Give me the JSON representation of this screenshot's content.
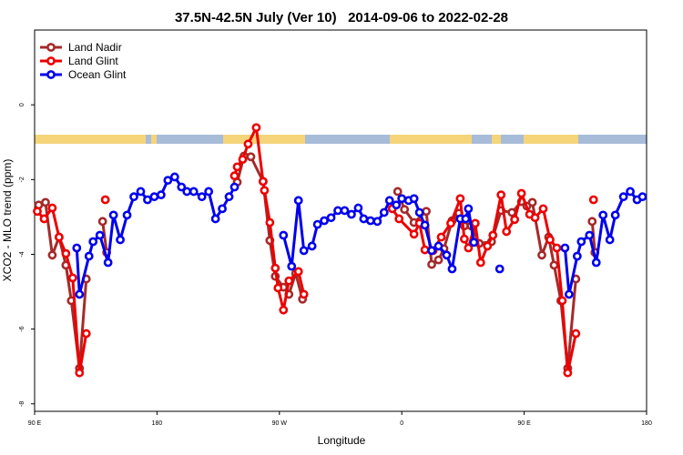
{
  "chart_data": {
    "type": "line",
    "title": "37.5N-42.5N July (Ver 10)   2014-09-06 to 2022-02-28",
    "x_label": "Longitude",
    "y_label": "XCO2 - MLO trend (ppm)",
    "xlim": [
      90,
      540
    ],
    "xticks": [
      {
        "value": 90,
        "label": "90 E"
      },
      {
        "value": 180,
        "label": "180"
      },
      {
        "value": 270,
        "label": "90 W"
      },
      {
        "value": 360,
        "label": "0"
      },
      {
        "value": 450,
        "label": "90 E"
      },
      {
        "value": 540,
        "label": "180"
      }
    ],
    "ylim": [
      -8.2,
      2
    ],
    "yticks": [
      0,
      -2,
      -4,
      -6,
      -8
    ],
    "legend": "top-left",
    "series": [
      {
        "name": "Land Nadir",
        "color": "#a52a2a",
        "x": [
          93,
          98,
          103,
          108,
          113,
          117,
          123,
          128,
          null,
          140,
          143,
          null,
          239,
          244,
          249,
          258,
          263,
          267,
          273,
          277,
          282,
          287,
          null,
          357,
          362,
          369,
          378,
          382,
          387,
          391,
          397,
          402,
          406,
          411,
          417,
          426,
          433,
          441,
          448,
          452,
          456,
          463,
          468,
          472,
          477,
          482,
          488,
          null,
          500,
          502
        ],
        "values": [
          -2.68,
          -2.61,
          -4.02,
          -3.54,
          -4.29,
          -5.24,
          -7.05,
          -4.66,
          null,
          -3.12,
          -3.95,
          null,
          -2.07,
          -1.37,
          -1.39,
          -2.05,
          -3.63,
          -4.59,
          -4.88,
          -5.07,
          -4.51,
          -5.2,
          null,
          -2.32,
          -2.8,
          -3.15,
          -2.85,
          -4.27,
          -4.15,
          -3.85,
          -3.1,
          -2.9,
          -3.24,
          -3.24,
          -3.71,
          -3.66,
          -2.83,
          -2.88,
          -2.59,
          -2.71,
          -2.61,
          -4.02,
          -3.54,
          -4.29,
          -5.24,
          -7.05,
          -4.66,
          null,
          -3.12,
          -3.95
        ]
      },
      {
        "name": "Land Glint",
        "color": "#ee0000",
        "x": [
          92,
          97,
          103,
          108,
          113,
          118,
          123,
          128,
          null,
          142,
          null,
          237,
          239,
          243,
          247,
          253,
          258,
          259,
          263,
          267,
          269,
          273,
          277,
          284,
          288,
          null,
          353,
          358,
          369,
          373,
          377,
          383,
          389,
          396,
          403,
          406,
          409,
          414,
          418,
          423,
          427,
          433,
          437,
          443,
          448,
          454,
          458,
          464,
          469,
          474,
          478,
          482,
          488,
          null,
          501
        ],
        "values": [
          -2.85,
          -3.05,
          -2.76,
          -3.54,
          -3.98,
          -4.63,
          -7.17,
          -6.12,
          null,
          -2.54,
          null,
          -1.9,
          -1.66,
          -1.46,
          -1.05,
          -0.61,
          -2.05,
          -2.29,
          -3.15,
          -4.37,
          -4.9,
          -5.49,
          -4.71,
          -4.46,
          -5.07,
          null,
          -2.78,
          -3.05,
          -3.46,
          -3.17,
          -3.88,
          -3.9,
          -3.54,
          -3.17,
          -2.51,
          -3.59,
          -3.83,
          -3.17,
          -4.22,
          -3.78,
          -3.49,
          -2.41,
          -3.39,
          -3.07,
          -2.37,
          -2.93,
          -3.02,
          -2.78,
          -3.61,
          -3.83,
          -5.24,
          -7.17,
          -6.12,
          null,
          -2.54
        ]
      },
      {
        "name": "Ocean Glint",
        "color": "#0000ee",
        "x": [
          121,
          123,
          130,
          133,
          138,
          144,
          148,
          153,
          158,
          163,
          168,
          173,
          178,
          183,
          188,
          193,
          198,
          202,
          207,
          213,
          218,
          223,
          228,
          233,
          237,
          null,
          273,
          279,
          284,
          288,
          294,
          298,
          303,
          308,
          313,
          318,
          323,
          328,
          332,
          337,
          342,
          347,
          351,
          356,
          360,
          365,
          369,
          373,
          377,
          382,
          387,
          393,
          397,
          403,
          407,
          409,
          413,
          null,
          432,
          null,
          480,
          483,
          489,
          492,
          498,
          503,
          508,
          513,
          517,
          523,
          528,
          533,
          537
        ],
        "values": [
          -3.83,
          -5.07,
          -4.05,
          -3.66,
          -3.49,
          -4.22,
          -2.95,
          -3.61,
          -2.95,
          -2.46,
          -2.32,
          -2.54,
          -2.46,
          -2.41,
          -2.02,
          -1.93,
          -2.2,
          -2.32,
          -2.32,
          -2.46,
          -2.32,
          -3.05,
          -2.78,
          -2.46,
          -2.2,
          null,
          -3.49,
          -4.32,
          -2.56,
          -3.9,
          -3.78,
          -3.2,
          -3.1,
          -3.02,
          -2.83,
          -2.83,
          -2.93,
          -2.76,
          -3.05,
          -3.1,
          -3.12,
          -2.88,
          -2.56,
          -2.68,
          -2.51,
          -2.56,
          -2.51,
          -2.88,
          -3.22,
          -3.9,
          -3.78,
          -4.02,
          -4.39,
          -3.05,
          -3.05,
          -2.78,
          -3.68,
          null,
          -4.39,
          null,
          -3.83,
          -5.07,
          -4.05,
          -3.66,
          -3.49,
          -4.22,
          -2.95,
          -3.61,
          -2.95,
          -2.46,
          -2.32,
          -2.54,
          -2.46
        ]
      }
    ]
  }
}
